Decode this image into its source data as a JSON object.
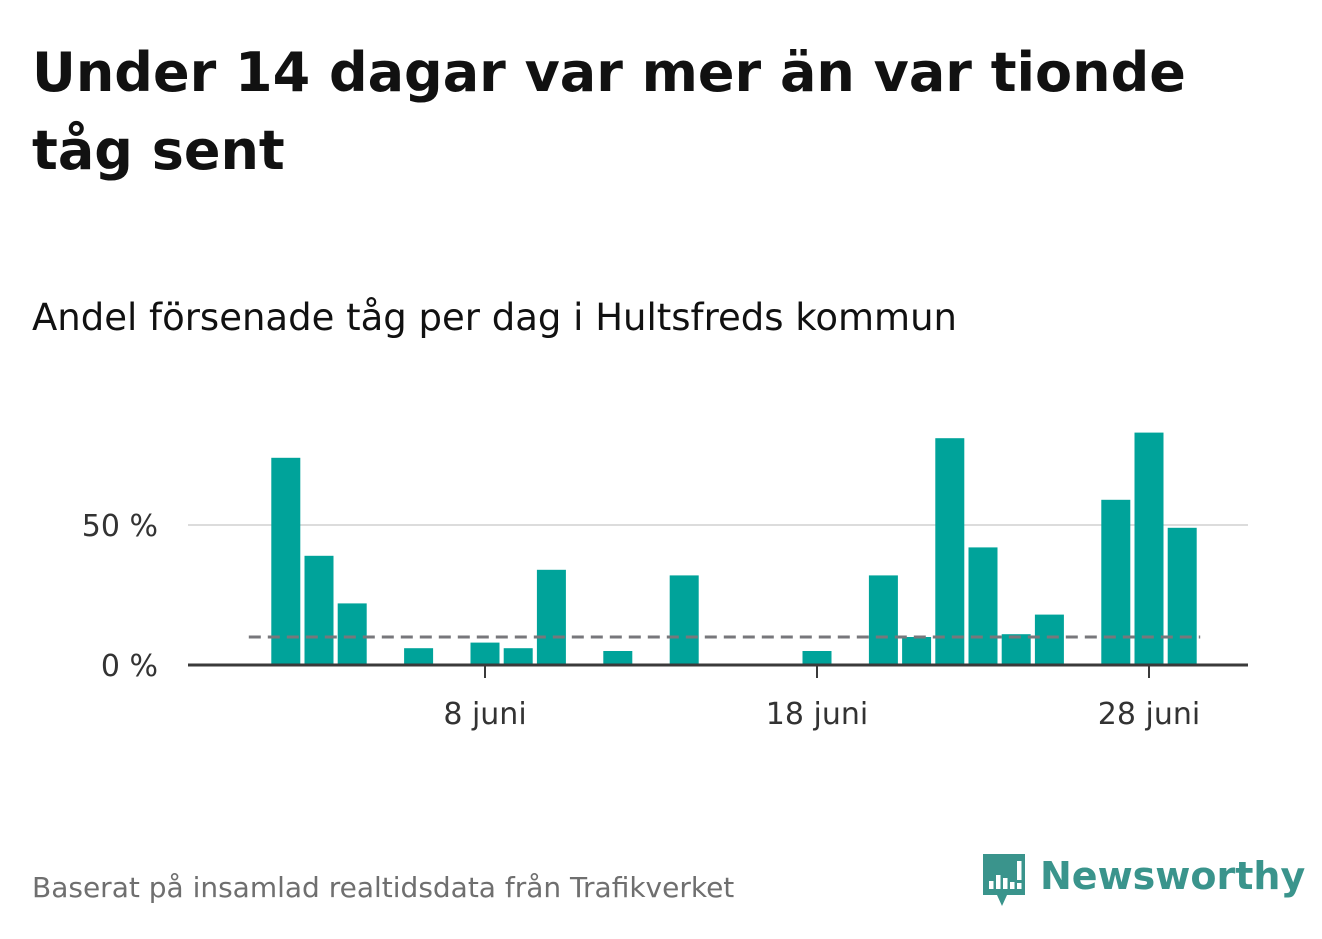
{
  "header": {
    "title": "Under 14 dagar var mer än var tionde tåg sent",
    "subtitle": "Andel försenade tåg per dag i Hultsfreds kommun"
  },
  "footer": {
    "source": "Baserat på insamlad realtidsdata från Trafikverket",
    "brand": "Newsworthy"
  },
  "colors": {
    "bar": "#00a39a",
    "reference_line": "#77777b",
    "grid": "#dcdcdc",
    "axis": "#3a3a3a",
    "brand": "#3a948c"
  },
  "icons": {
    "logo": "newsworthy-logo-icon"
  },
  "chart_data": {
    "type": "bar",
    "title": "Andel försenade tåg per dag i Hultsfreds kommun",
    "xlabel": "",
    "ylabel": "",
    "ylim": [
      0,
      90
    ],
    "grid": true,
    "y_ticks": [
      {
        "value": 0,
        "label": "0 %"
      },
      {
        "value": 50,
        "label": "50 %"
      }
    ],
    "x_ticks": [
      {
        "day": 8,
        "label": "8 juni"
      },
      {
        "day": 18,
        "label": "18 juni"
      },
      {
        "day": 28,
        "label": "28 juni"
      }
    ],
    "reference_line": {
      "value": 10,
      "style": "dashed"
    },
    "categories": [
      "2 juni",
      "3 juni",
      "4 juni",
      "5 juni",
      "6 juni",
      "7 juni",
      "8 juni",
      "9 juni",
      "10 juni",
      "11 juni",
      "12 juni",
      "13 juni",
      "14 juni",
      "15 juni",
      "16 juni",
      "17 juni",
      "18 juni",
      "19 juni",
      "20 juni",
      "21 juni",
      "22 juni",
      "23 juni",
      "24 juni",
      "25 juni",
      "26 juni",
      "27 juni",
      "28 juni",
      "29 juni"
    ],
    "days": [
      2,
      3,
      4,
      5,
      6,
      7,
      8,
      9,
      10,
      11,
      12,
      13,
      14,
      15,
      16,
      17,
      18,
      19,
      20,
      21,
      22,
      23,
      24,
      25,
      26,
      27,
      28,
      29
    ],
    "values": [
      74,
      39,
      22,
      0,
      6,
      0,
      8,
      6,
      34,
      0,
      5,
      0,
      32,
      0,
      0,
      0,
      5,
      0,
      32,
      10,
      81,
      42,
      11,
      18,
      0,
      59,
      83,
      49
    ]
  }
}
